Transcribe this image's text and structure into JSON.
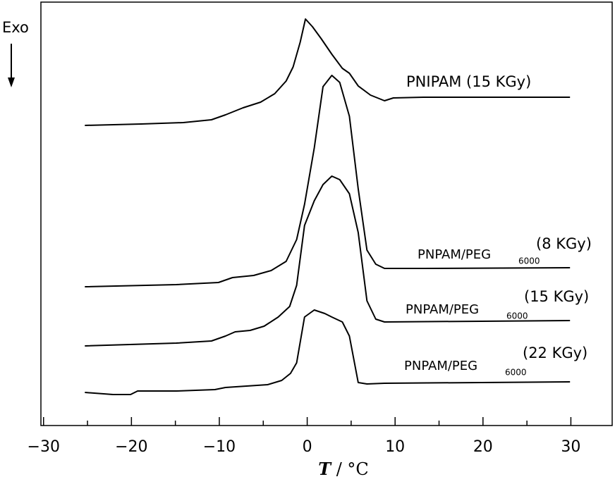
{
  "chart_data": {
    "type": "line",
    "ylabel": "Exo",
    "xlabel_parts": [
      "T",
      " / °C"
    ],
    "xlim": [
      -30.3,
      34.7
    ],
    "ylim": [
      0,
      601
    ],
    "xticks": [
      {
        "value": -30,
        "label": "−30"
      },
      {
        "value": -20,
        "label": "−20"
      },
      {
        "value": -10,
        "label": "−10"
      },
      0,
      10,
      20,
      30
    ],
    "xminorticks": [
      -25,
      -15,
      -5,
      5,
      15,
      25
    ],
    "color": "#000000",
    "series": [
      {
        "name_parts": [
          "PNIPAM (15 KGy)"
        ],
        "x": [
          -25.3,
          -18.9,
          -14.1,
          -10.9,
          -9.3,
          -7.3,
          -5.3,
          -3.7,
          -2.4,
          -1.6,
          -0.8,
          -0.2,
          0.6,
          1.6,
          2.8,
          4.0,
          4.8,
          5.8,
          7.2,
          8.8,
          9.8,
          13.2,
          29.9
        ],
        "values": [
          426,
          428,
          430,
          434,
          441,
          451,
          459,
          471,
          489,
          509,
          544,
          577,
          566,
          549,
          527,
          507,
          500,
          482,
          469,
          461,
          465,
          466,
          466
        ]
      },
      {
        "name_parts": [
          "PNPAM/PEG",
          "6000",
          "(8 KGy)"
        ],
        "x": [
          -25.3,
          -14.9,
          -10.1,
          -8.5,
          -6.1,
          -4.1,
          -2.4,
          -1.2,
          -0.3,
          0.8,
          1.8,
          2.8,
          3.7,
          4.8,
          5.8,
          6.8,
          7.8,
          8.8,
          13.2,
          29.9
        ],
        "values": [
          197,
          200,
          203,
          210,
          213,
          220,
          233,
          264,
          314,
          394,
          481,
          497,
          487,
          439,
          336,
          249,
          229,
          223,
          223,
          224
        ]
      },
      {
        "name_parts": [
          "PNPAM/PEG",
          "6000",
          "(15 KGy)"
        ],
        "x": [
          -25.3,
          -14.9,
          -10.9,
          -9.3,
          -8.2,
          -6.5,
          -4.9,
          -3.3,
          -2.0,
          -1.2,
          -0.3,
          0.8,
          1.8,
          2.8,
          3.7,
          4.8,
          5.8,
          6.8,
          7.8,
          8.8,
          29.9
        ],
        "values": [
          113,
          117,
          120,
          127,
          133,
          135,
          141,
          154,
          169,
          199,
          284,
          319,
          342,
          354,
          349,
          329,
          274,
          177,
          151,
          147,
          149
        ]
      },
      {
        "name_parts": [
          "PNPAM/PEG",
          "6000",
          "(22 KGy)"
        ],
        "x": [
          -25.3,
          -22.1,
          -20.1,
          -19.3,
          -14.9,
          -10.5,
          -9.3,
          -8.1,
          -4.5,
          -2.9,
          -1.9,
          -1.2,
          -0.3,
          0.8,
          2.0,
          2.8,
          4.0,
          4.8,
          5.8,
          6.8,
          8.8,
          29.9
        ],
        "values": [
          47,
          44,
          44,
          49,
          49,
          51,
          54,
          55,
          58,
          64,
          74,
          89,
          154,
          164,
          159,
          154,
          147,
          127,
          61,
          59,
          60,
          62
        ]
      }
    ]
  }
}
